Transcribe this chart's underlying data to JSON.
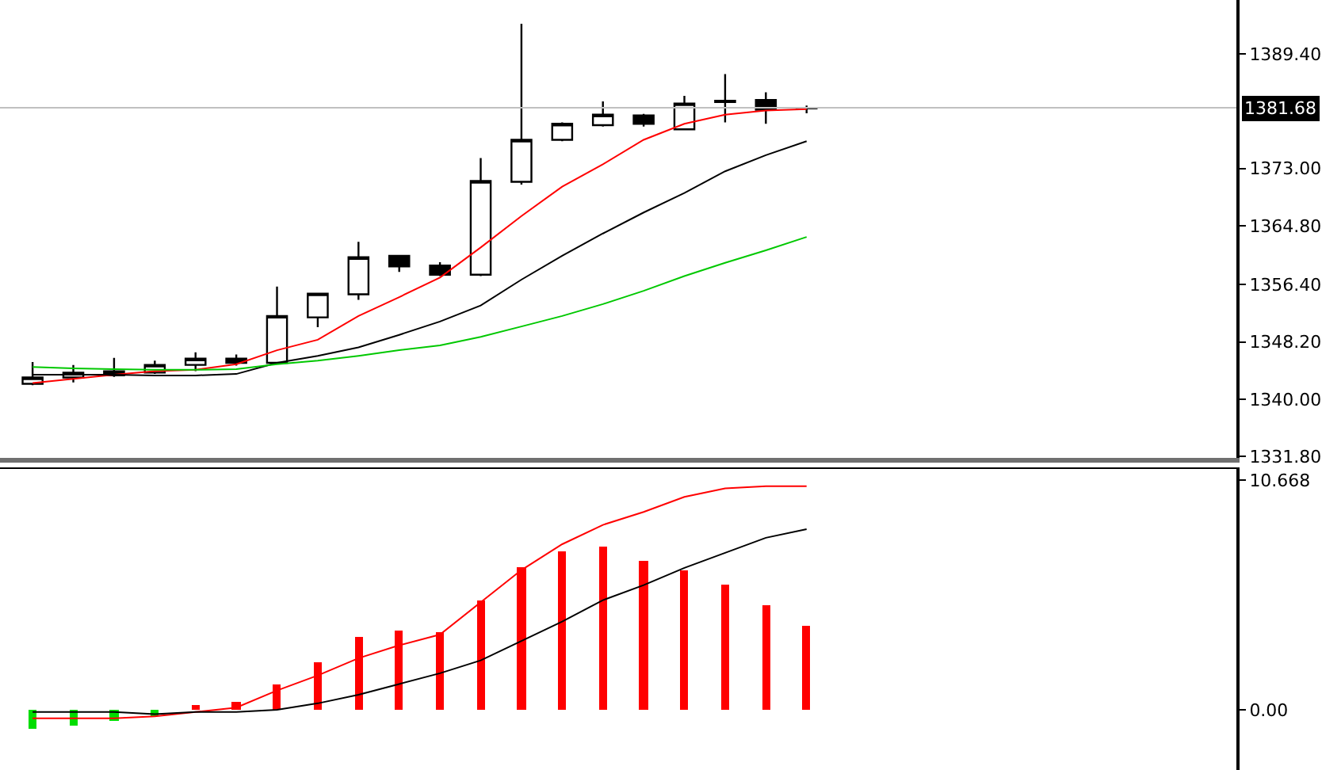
{
  "chart_data": [
    {
      "type": "candlestick",
      "categories": [
        null,
        null,
        null,
        null,
        null,
        null,
        null,
        null,
        null,
        null,
        null,
        null,
        null,
        null,
        null,
        null,
        null,
        null,
        null,
        null
      ],
      "ohlc": [
        [
          1342.2,
          1345.3,
          1342.0,
          1343.1
        ],
        [
          1343.1,
          1344.9,
          1342.4,
          1343.8
        ],
        [
          1344.0,
          1345.9,
          1343.2,
          1343.4
        ],
        [
          1343.8,
          1345.5,
          1343.6,
          1344.9
        ],
        [
          1344.9,
          1346.7,
          1344.0,
          1345.8
        ],
        [
          1345.8,
          1346.4,
          1344.8,
          1345.2
        ],
        [
          1345.2,
          1356.1,
          1345.0,
          1351.9
        ],
        [
          1351.7,
          1355.1,
          1350.3,
          1355.1
        ],
        [
          1355.0,
          1362.5,
          1354.2,
          1360.3
        ],
        [
          1360.5,
          1360.5,
          1358.2,
          1359.0
        ],
        [
          1359.1,
          1359.6,
          1357.6,
          1357.8
        ],
        [
          1357.8,
          1374.5,
          1357.6,
          1371.2
        ],
        [
          1371.1,
          1393.7,
          1370.7,
          1377.1
        ],
        [
          1377.1,
          1379.6,
          1376.9,
          1379.4
        ],
        [
          1379.2,
          1382.6,
          1379.0,
          1380.7
        ],
        [
          1380.6,
          1380.8,
          1379.0,
          1379.4
        ],
        [
          1378.6,
          1383.4,
          1378.6,
          1382.3
        ],
        [
          1382.5,
          1386.5,
          1379.6,
          1382.7
        ],
        [
          1382.8,
          1383.9,
          1379.4,
          1381.4
        ],
        [
          1381.6,
          1382.0,
          1380.9,
          1381.68
        ]
      ],
      "series": [
        {
          "type": "line",
          "color": "#ff0000",
          "values": [
            1342.3,
            1342.9,
            1343.5,
            1344.0,
            1344.2,
            1345.0,
            1347.0,
            1348.5,
            1351.9,
            1354.6,
            1357.4,
            1361.7,
            1366.2,
            1370.4,
            1373.6,
            1377.1,
            1379.4,
            1380.7,
            1381.3,
            1381.5
          ]
        },
        {
          "type": "line",
          "color": "#000000",
          "values": [
            1343.5,
            1343.5,
            1343.5,
            1343.4,
            1343.4,
            1343.6,
            1345.2,
            1346.2,
            1347.4,
            1349.2,
            1351.1,
            1353.4,
            1357.1,
            1360.5,
            1363.7,
            1366.7,
            1369.5,
            1372.6,
            1374.9,
            1376.9
          ]
        },
        {
          "type": "line",
          "color": "#00c800",
          "values": [
            1344.6,
            1344.4,
            1344.3,
            1344.2,
            1344.2,
            1344.3,
            1345.0,
            1345.5,
            1346.2,
            1347.0,
            1347.7,
            1348.9,
            1350.4,
            1351.9,
            1353.6,
            1355.5,
            1357.6,
            1359.5,
            1361.3,
            1363.2
          ]
        }
      ],
      "ylim": [
        1331.6,
        1397.1
      ],
      "yticks": [
        {
          "value": 1331.8,
          "label": "1331.80"
        },
        {
          "value": 1340,
          "label": "1340.00"
        },
        {
          "value": 1348.2,
          "label": "1348.20"
        },
        {
          "value": 1356.4,
          "label": "1356.40"
        },
        {
          "value": 1364.8,
          "label": "1364.80"
        },
        {
          "value": 1373,
          "label": "1373.00"
        },
        {
          "value": 1389.4,
          "label": "1389.40"
        }
      ],
      "ref_lines": [
        {
          "axis": "y",
          "value": 1381.68,
          "label": "1381.68",
          "color": "#c0c0c0"
        }
      ],
      "tick_labels": "y"
    },
    {
      "type": "bar",
      "categories": [
        null,
        null,
        null,
        null,
        null,
        null,
        null,
        null,
        null,
        null,
        null,
        null,
        null,
        null,
        null,
        null,
        null,
        null,
        null,
        null
      ],
      "series": [
        {
          "type": "bar",
          "colors": [
            "#00dd00",
            "#00dd00",
            "#00dd00",
            "#00dd00",
            "#ff0000",
            "#ff0000",
            "#ff0000",
            "#ff0000",
            "#ff0000",
            "#ff0000",
            "#ff0000",
            "#ff0000",
            "#ff0000",
            "#ff0000",
            "#ff0000",
            "#ff0000",
            "#ff0000",
            "#ff0000",
            "#ff0000",
            "#ff0000"
          ],
          "values": [
            -0.9,
            -0.7,
            -0.5,
            -0.3,
            0.2,
            0.4,
            1.2,
            2.2,
            3.4,
            3.7,
            3.6,
            5.1,
            6.6,
            7.4,
            7.6,
            6.9,
            6.5,
            5.8,
            4.9,
            3.9
          ]
        },
        {
          "type": "line",
          "color": "#ff0000",
          "values": [
            -0.4,
            -0.4,
            -0.4,
            -0.3,
            -0.1,
            0.1,
            0.9,
            1.6,
            2.4,
            3.0,
            3.5,
            5.0,
            6.5,
            7.7,
            8.6,
            9.2,
            9.9,
            10.3,
            10.4,
            10.4
          ]
        },
        {
          "type": "line",
          "color": "#000000",
          "values": [
            -0.1,
            -0.1,
            -0.1,
            -0.2,
            -0.1,
            -0.1,
            0.0,
            0.3,
            0.7,
            1.2,
            1.7,
            2.3,
            3.2,
            4.1,
            5.1,
            5.8,
            6.6,
            7.3,
            8.0,
            8.4
          ]
        }
      ],
      "ylim": [
        -2.8,
        11.2
      ],
      "yticks": [
        {
          "value": 0,
          "label": "0.00"
        },
        10.668
      ],
      "tick_labels": "y"
    }
  ]
}
